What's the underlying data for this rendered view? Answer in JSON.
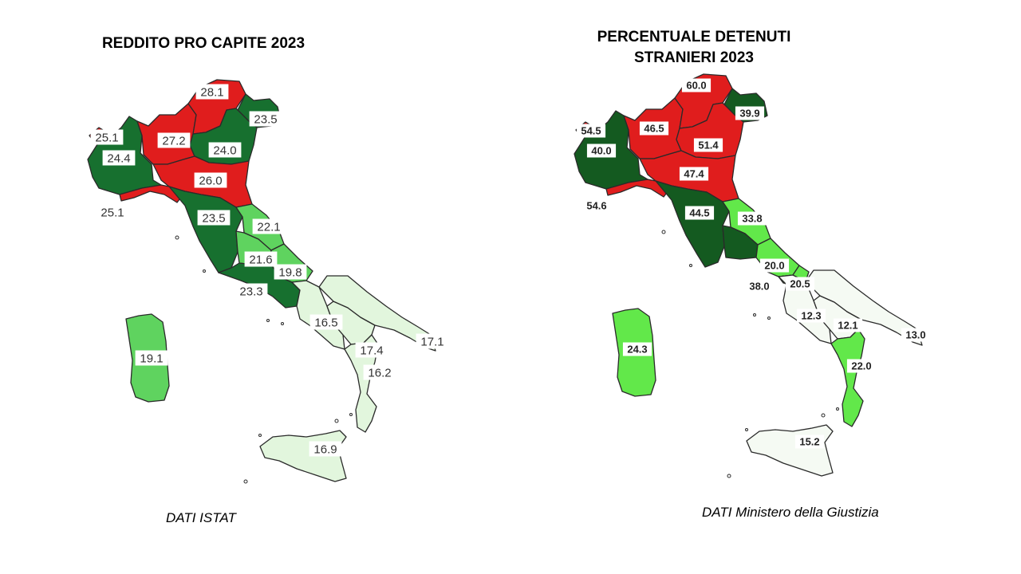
{
  "maps": [
    {
      "title": "REDDITO PRO CAPITE 2023",
      "source": "DATI ISTAT",
      "regions": [
        {
          "region": "Valle d'Aosta",
          "value": "25.1",
          "color": "#e01d1d"
        },
        {
          "region": "Piemonte",
          "value": "24.4",
          "color": "#17702f"
        },
        {
          "region": "Lombardia",
          "value": "27.2",
          "color": "#e01d1d"
        },
        {
          "region": "Trentino-Alto Adige",
          "value": "28.1",
          "color": "#e01d1d"
        },
        {
          "region": "Friuli-Venezia Giulia",
          "value": "23.5",
          "color": "#17702f"
        },
        {
          "region": "Veneto",
          "value": "24.0",
          "color": "#17702f"
        },
        {
          "region": "Emilia-Romagna",
          "value": "26.0",
          "color": "#e01d1d"
        },
        {
          "region": "Liguria",
          "value": "25.1",
          "color": "#e01d1d"
        },
        {
          "region": "Toscana",
          "value": "23.5",
          "color": "#17702f"
        },
        {
          "region": "Marche",
          "value": "22.1",
          "color": "#5fd35f"
        },
        {
          "region": "Umbria",
          "value": "21.6",
          "color": "#5fd35f"
        },
        {
          "region": "Abruzzo",
          "value": "19.8",
          "color": "#5fd35f"
        },
        {
          "region": "Lazio",
          "value": "23.3",
          "color": "#17702f"
        },
        {
          "region": "Campania",
          "value": "16.5",
          "color": "#e2f6dd"
        },
        {
          "region": "Basilicata",
          "value": "17.4",
          "color": "#e2f6dd"
        },
        {
          "region": "Puglia",
          "value": "17.1",
          "color": "#e2f6dd"
        },
        {
          "region": "Calabria",
          "value": "16.2",
          "color": "#e2f6dd"
        },
        {
          "region": "Sicilia",
          "value": "16.9",
          "color": "#e2f6dd"
        },
        {
          "region": "Sardegna",
          "value": "19.1",
          "color": "#5fd35f"
        }
      ]
    },
    {
      "title_lines": [
        "PERCENTUALE DETENUTI",
        "STRANIERI 2023"
      ],
      "source": "DATI Ministero della Giustizia",
      "regions": [
        {
          "region": "Valle d'Aosta",
          "value": "54.5",
          "color": "#e01d1d"
        },
        {
          "region": "Piemonte",
          "value": "40.0",
          "color": "#145a20"
        },
        {
          "region": "Lombardia",
          "value": "46.5",
          "color": "#e01d1d"
        },
        {
          "region": "Trentino-Alto Adige",
          "value": "60.0",
          "color": "#e01d1d"
        },
        {
          "region": "Friuli-Venezia Giulia",
          "value": "39.9",
          "color": "#145a20"
        },
        {
          "region": "Veneto",
          "value": "51.4",
          "color": "#e01d1d"
        },
        {
          "region": "Emilia-Romagna",
          "value": "47.4",
          "color": "#e01d1d"
        },
        {
          "region": "Liguria",
          "value": "54.6",
          "color": "#e01d1d"
        },
        {
          "region": "Toscana",
          "value": "44.5",
          "color": "#145a20"
        },
        {
          "region": "Marche",
          "value": "33.8",
          "color": "#62e84a"
        },
        {
          "region": "Umbria",
          "value": "38.0",
          "color": "#145a20"
        },
        {
          "region": "Abruzzo",
          "value": "20.0",
          "color": "#62e84a"
        },
        {
          "region": "Molise",
          "value": "20.5",
          "color": "#62e84a"
        },
        {
          "region": "Campania",
          "value": "12.3",
          "color": "#f5faf3"
        },
        {
          "region": "Basilicata",
          "value": "12.1",
          "color": "#f5faf3"
        },
        {
          "region": "Puglia",
          "value": "13.0",
          "color": "#f5faf3"
        },
        {
          "region": "Calabria",
          "value": "22.0",
          "color": "#62e84a"
        },
        {
          "region": "Sicilia",
          "value": "15.2",
          "color": "#f5faf3"
        },
        {
          "region": "Sardegna",
          "value": "24.3",
          "color": "#62e84a"
        }
      ]
    }
  ]
}
